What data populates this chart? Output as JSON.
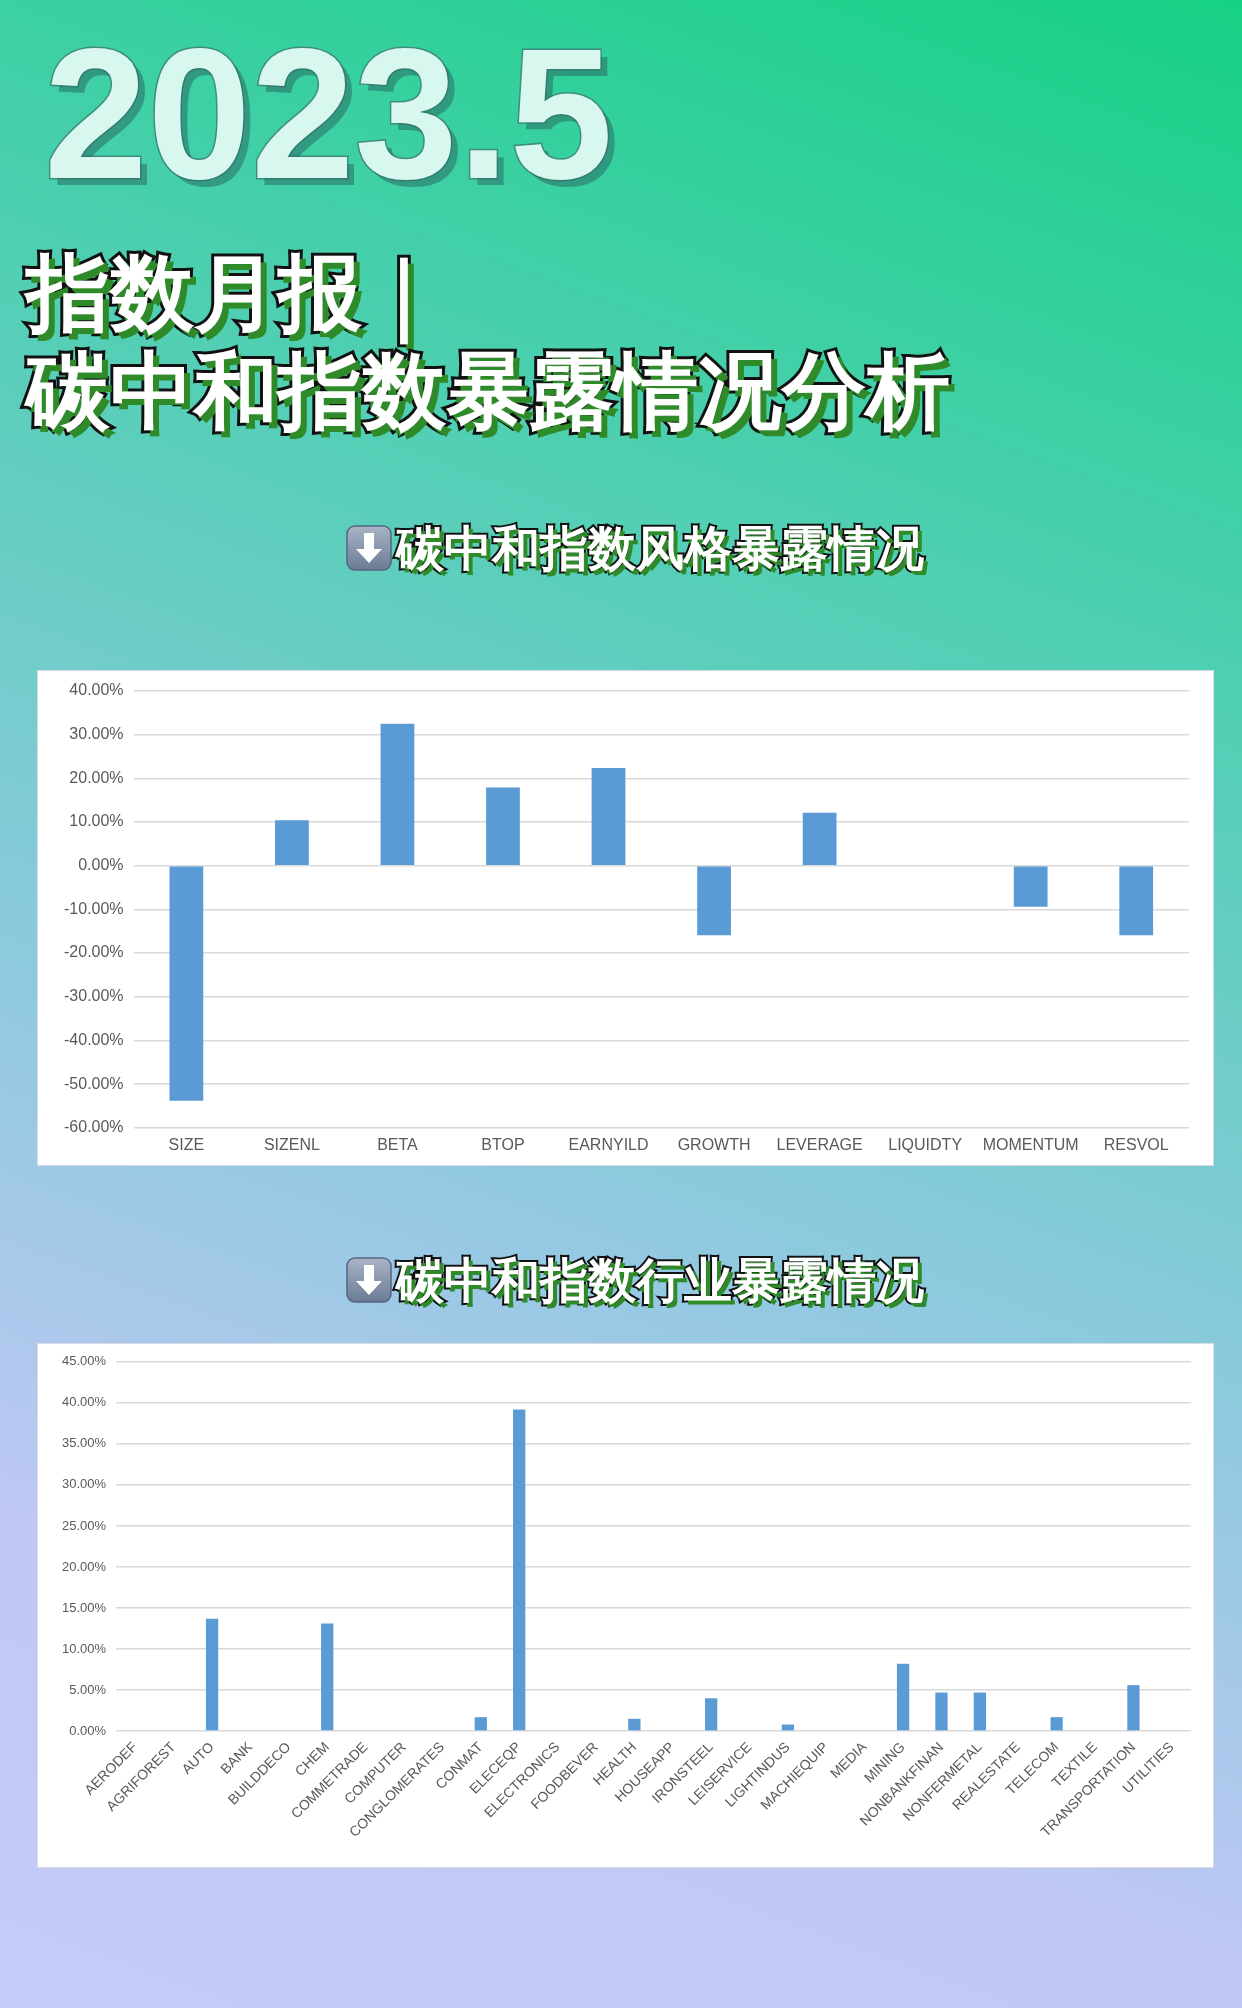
{
  "chart_data": [
    {
      "type": "bar",
      "title": "指数月报｜碳中和指数暴露情况分析",
      "subtitle": "碳中和指数风格暴露情况",
      "annotations": [
        "2023.5"
      ],
      "categories": [
        "SIZE",
        "SIZENL",
        "BETA",
        "BTOP",
        "EARNYILD",
        "GROWTH",
        "LEVERAGE",
        "LIQUIDTY",
        "MOMENTUM",
        "RESVOL"
      ],
      "values": [
        -53.8,
        10.4,
        32.5,
        17.9,
        22.4,
        -15.9,
        12.1,
        0,
        -9.4,
        -15.9
      ],
      "color": "#5b9bd5",
      "ylim": [
        -60,
        40
      ],
      "yticks": [
        {
          "value": -60,
          "label": "-60.00%"
        },
        {
          "value": -50,
          "label": "-50.00%"
        },
        {
          "value": -40,
          "label": "-40.00%"
        },
        {
          "value": -30,
          "label": "-30.00%"
        },
        {
          "value": -20,
          "label": "-20.00%"
        },
        {
          "value": -10,
          "label": "-10.00%"
        },
        {
          "value": 0,
          "label": "0.00%"
        },
        {
          "value": 10,
          "label": "10.00%"
        },
        {
          "value": 20,
          "label": "20.00%"
        },
        {
          "value": 30,
          "label": "30.00%"
        },
        {
          "value": 40,
          "label": "40.00%"
        }
      ],
      "grid": "y"
    },
    {
      "type": "bar",
      "title": "碳中和指数行业暴露情况",
      "categories": [
        "AERODEF",
        "AGRIFOREST",
        "AUTO",
        "BANK",
        "BUILDDECO",
        "CHEM",
        "COMMETRADE",
        "COMPUTER",
        "CONGLOMERATES",
        "CONMAT",
        "ELECEQP",
        "ELECTRONICS",
        "FOODBEVER",
        "HEALTH",
        "HOUSEAPP",
        "IRONSTEEL",
        "LEISERVICE",
        "LIGHTINDUS",
        "MACHIEQUIP",
        "MEDIA",
        "MINING",
        "NONBANKFINAN",
        "NONFERMETAL",
        "REALESTATE",
        "TELECOM",
        "TEXTILE",
        "TRANSPORTATION",
        "UTILITIES"
      ],
      "values": [
        0,
        0,
        13.7,
        0,
        0,
        13.1,
        0,
        0,
        0,
        1.7,
        39.2,
        0,
        0,
        1.5,
        0,
        4.0,
        0,
        0.8,
        0,
        0,
        8.2,
        4.7,
        4.7,
        0,
        1.7,
        0,
        5.6,
        0
      ],
      "color": "#5b9bd5",
      "ylim": [
        0,
        45
      ],
      "yticks": [
        {
          "value": 0,
          "label": "0.00%"
        },
        {
          "value": 5,
          "label": "5.00%"
        },
        {
          "value": 10,
          "label": "10.00%"
        },
        {
          "value": 15,
          "label": "15.00%"
        },
        {
          "value": 20,
          "label": "20.00%"
        },
        {
          "value": 25,
          "label": "25.00%"
        },
        {
          "value": 30,
          "label": "30.00%"
        },
        {
          "value": 35,
          "label": "35.00%"
        },
        {
          "value": 40,
          "label": "40.00%"
        },
        {
          "value": 45,
          "label": "45.00%"
        }
      ],
      "grid": "y"
    }
  ]
}
